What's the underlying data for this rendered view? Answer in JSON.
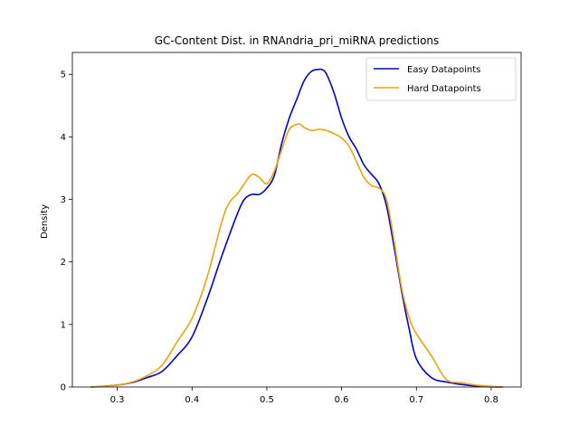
{
  "chart_data": {
    "type": "line",
    "title": "GC-Content Dist. in RNAndria_pri_miRNA predictions",
    "xlabel": "",
    "ylabel": "Density",
    "xlim": [
      0.24,
      0.84
    ],
    "ylim": [
      0,
      5.35
    ],
    "xticks": [
      0.3,
      0.4,
      0.5,
      0.6,
      0.7,
      0.8
    ],
    "yticks": [
      0,
      1,
      2,
      3,
      4,
      5
    ],
    "grid": false,
    "legend_position": "top-right",
    "series": [
      {
        "name": "Easy Datapoints",
        "color": "#0000cd",
        "x": [
          0.265,
          0.28,
          0.3,
          0.32,
          0.34,
          0.36,
          0.38,
          0.4,
          0.42,
          0.44,
          0.46,
          0.47,
          0.48,
          0.49,
          0.5,
          0.51,
          0.52,
          0.53,
          0.54,
          0.55,
          0.56,
          0.57,
          0.575,
          0.58,
          0.59,
          0.6,
          0.61,
          0.62,
          0.63,
          0.64,
          0.65,
          0.66,
          0.67,
          0.68,
          0.69,
          0.7,
          0.72,
          0.74,
          0.76,
          0.78,
          0.8,
          0.815
        ],
        "y": [
          0.0,
          0.01,
          0.03,
          0.07,
          0.15,
          0.25,
          0.5,
          0.8,
          1.4,
          2.1,
          2.75,
          3.0,
          3.08,
          3.08,
          3.18,
          3.38,
          3.9,
          4.3,
          4.6,
          4.9,
          5.05,
          5.08,
          5.07,
          5.0,
          4.7,
          4.3,
          4.0,
          3.8,
          3.55,
          3.4,
          3.25,
          2.9,
          2.25,
          1.55,
          0.95,
          0.45,
          0.15,
          0.08,
          0.04,
          0.015,
          0.005,
          0.0
        ]
      },
      {
        "name": "Hard Datapoints",
        "color": "#f0a30a",
        "x": [
          0.265,
          0.28,
          0.3,
          0.32,
          0.34,
          0.36,
          0.38,
          0.4,
          0.42,
          0.44,
          0.45,
          0.46,
          0.47,
          0.48,
          0.49,
          0.5,
          0.51,
          0.52,
          0.53,
          0.54,
          0.545,
          0.55,
          0.56,
          0.57,
          0.58,
          0.59,
          0.6,
          0.61,
          0.62,
          0.63,
          0.64,
          0.65,
          0.66,
          0.67,
          0.68,
          0.69,
          0.7,
          0.72,
          0.74,
          0.76,
          0.78,
          0.8,
          0.815
        ],
        "y": [
          0.0,
          0.01,
          0.03,
          0.08,
          0.18,
          0.35,
          0.72,
          1.1,
          1.75,
          2.65,
          2.95,
          3.08,
          3.25,
          3.4,
          3.35,
          3.25,
          3.45,
          3.8,
          4.12,
          4.2,
          4.2,
          4.15,
          4.1,
          4.12,
          4.1,
          4.05,
          3.98,
          3.85,
          3.6,
          3.35,
          3.22,
          3.18,
          3.0,
          2.35,
          1.6,
          1.12,
          0.85,
          0.5,
          0.12,
          0.07,
          0.03,
          0.01,
          0.0
        ]
      }
    ]
  }
}
